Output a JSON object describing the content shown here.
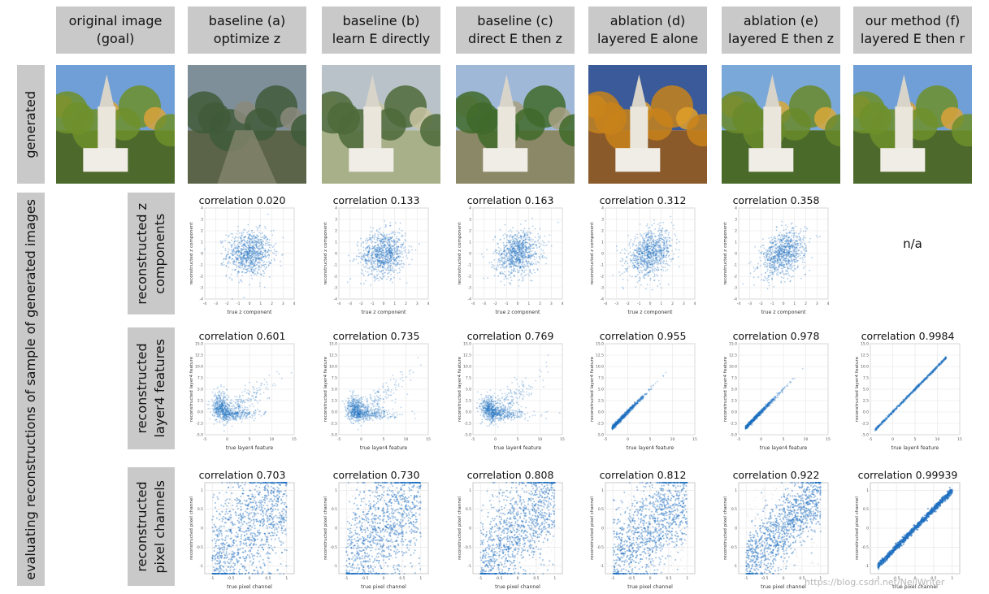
{
  "columns": [
    {
      "line1": "original image",
      "line2": "(goal)"
    },
    {
      "line1": "baseline (a)",
      "line2": "optimize z"
    },
    {
      "line1": "baseline (b)",
      "line2": "learn E directly"
    },
    {
      "line1": "baseline (c)",
      "line2": "direct E then z"
    },
    {
      "line1": "ablation (d)",
      "line2": "layered E alone"
    },
    {
      "line1": "ablation (e)",
      "line2": "layered E then z"
    },
    {
      "line1": "our method (f)",
      "line2": "layered E then r"
    }
  ],
  "side_labels": {
    "generated": "generated",
    "evaluating": "evaluating reconstructions of sample of generated images"
  },
  "row_labels": [
    {
      "line1": "reconstructed z",
      "line2": "components"
    },
    {
      "line1": "reconstructed",
      "line2": "layer4 features"
    },
    {
      "line1": "reconstructed",
      "line2": "pixel channels"
    }
  ],
  "na_text": "n/a",
  "watermark": "https://blog.csdn.net/NeilWriter",
  "images": [
    {
      "name": "original-image",
      "sky": "#6f9fd6",
      "ground": "#4d6a2c",
      "foliage": "#6f8f2a",
      "accent": "#d9a23a",
      "building": true
    },
    {
      "name": "baseline-a-image",
      "sky": "#7f8f9a",
      "ground": "#5b6448",
      "foliage": "#3f5a3a",
      "accent": "#8a8a7a",
      "building": false
    },
    {
      "name": "baseline-b-image",
      "sky": "#b8c2c8",
      "ground": "#a8b08a",
      "foliage": "#4e6a3a",
      "accent": "#c8c4a0",
      "building": true
    },
    {
      "name": "baseline-c-image",
      "sky": "#9fb8d8",
      "ground": "#8a8866",
      "foliage": "#3f6a2a",
      "accent": "#a8a080",
      "building": true
    },
    {
      "name": "ablation-d-image",
      "sky": "#3a5a9a",
      "ground": "#8a5a2a",
      "foliage": "#c8821a",
      "accent": "#e0a02a",
      "building": true
    },
    {
      "name": "ablation-e-image",
      "sky": "#7aa8d8",
      "ground": "#4a6a2a",
      "foliage": "#6a8a2a",
      "accent": "#d8a83a",
      "building": true
    },
    {
      "name": "method-f-image",
      "sky": "#6f9fd6",
      "ground": "#4d6a2c",
      "foliage": "#6f8f2a",
      "accent": "#d9a23a",
      "building": true
    }
  ],
  "plot_rows": [
    {
      "row": "z-components",
      "xlabel": "true z component",
      "ylabel": "reconstructed z component",
      "xticks": [
        -4,
        -3,
        -2,
        -1,
        0,
        1,
        2,
        3,
        4
      ],
      "yticks": [
        -4,
        -3,
        -2,
        -1,
        0,
        1,
        2,
        3,
        4
      ],
      "xlim": [
        -4,
        4
      ],
      "ylim": [
        -4,
        4
      ],
      "plots": [
        {
          "column": 1,
          "correlation_label": "correlation",
          "correlation_value": "0.020",
          "r": 0.02,
          "style": "blob"
        },
        {
          "column": 2,
          "correlation_label": "correlation",
          "correlation_value": "0.133",
          "r": 0.133,
          "style": "blob"
        },
        {
          "column": 3,
          "correlation_label": "correlation",
          "correlation_value": "0.163",
          "r": 0.163,
          "style": "blob"
        },
        {
          "column": 4,
          "correlation_label": "correlation",
          "correlation_value": "0.312",
          "r": 0.312,
          "style": "blob"
        },
        {
          "column": 5,
          "correlation_label": "correlation",
          "correlation_value": "0.358",
          "r": 0.358,
          "style": "blob"
        }
      ]
    },
    {
      "row": "layer4-features",
      "xlabel": "true layer4 feature",
      "ylabel": "reconstructed layer4 feature",
      "xticks": [
        -5,
        0,
        5,
        10,
        15
      ],
      "yticks": [
        -5.0,
        -2.5,
        0.0,
        2.5,
        5.0,
        7.5,
        10.0,
        12.5,
        15.0
      ],
      "xlim": [
        -5,
        15
      ],
      "ylim": [
        -5,
        15
      ],
      "plots": [
        {
          "column": 1,
          "correlation_label": "correlation",
          "correlation_value": "0.601",
          "r": 0.601,
          "style": "feature"
        },
        {
          "column": 2,
          "correlation_label": "correlation",
          "correlation_value": "0.735",
          "r": 0.735,
          "style": "feature"
        },
        {
          "column": 3,
          "correlation_label": "correlation",
          "correlation_value": "0.769",
          "r": 0.769,
          "style": "feature"
        },
        {
          "column": 4,
          "correlation_label": "correlation",
          "correlation_value": "0.955",
          "r": 0.955,
          "style": "feature"
        },
        {
          "column": 5,
          "correlation_label": "correlation",
          "correlation_value": "0.978",
          "r": 0.978,
          "style": "feature"
        },
        {
          "column": 6,
          "correlation_label": "correlation",
          "correlation_value": "0.9984",
          "r": 0.9984,
          "style": "feature"
        }
      ]
    },
    {
      "row": "pixel-channels",
      "xlabel": "true pixel channel",
      "ylabel": "reconstructed pixel channel",
      "xticks": [
        -1.0,
        -0.5,
        0.0,
        0.5,
        1.0
      ],
      "yticks": [
        -1.0,
        -0.5,
        0.0,
        0.5,
        1.0
      ],
      "xlim": [
        -1.2,
        1.2
      ],
      "ylim": [
        -1.2,
        1.2
      ],
      "plots": [
        {
          "column": 1,
          "correlation_label": "correlation",
          "correlation_value": "0.703",
          "r": 0.703,
          "style": "pixel"
        },
        {
          "column": 2,
          "correlation_label": "correlation",
          "correlation_value": "0.730",
          "r": 0.73,
          "style": "pixel"
        },
        {
          "column": 3,
          "correlation_label": "correlation",
          "correlation_value": "0.808",
          "r": 0.808,
          "style": "pixel"
        },
        {
          "column": 4,
          "correlation_label": "correlation",
          "correlation_value": "0.812",
          "r": 0.812,
          "style": "pixel"
        },
        {
          "column": 5,
          "correlation_label": "correlation",
          "correlation_value": "0.922",
          "r": 0.922,
          "style": "pixel"
        },
        {
          "column": 6,
          "correlation_label": "correlation",
          "correlation_value": "0.99939",
          "r": 0.99939,
          "style": "pixel"
        }
      ]
    }
  ],
  "chart_data": [
    {
      "type": "scatter",
      "title": "correlation 0.020",
      "xlabel": "true z component",
      "ylabel": "reconstructed z component",
      "xlim": [
        -4,
        4
      ],
      "ylim": [
        -4,
        4
      ],
      "correlation": 0.02
    },
    {
      "type": "scatter",
      "title": "correlation 0.133",
      "xlabel": "true z component",
      "ylabel": "reconstructed z component",
      "xlim": [
        -4,
        4
      ],
      "ylim": [
        -4,
        4
      ],
      "correlation": 0.133
    },
    {
      "type": "scatter",
      "title": "correlation 0.163",
      "xlabel": "true z component",
      "ylabel": "reconstructed z component",
      "xlim": [
        -4,
        4
      ],
      "ylim": [
        -4,
        4
      ],
      "correlation": 0.163
    },
    {
      "type": "scatter",
      "title": "correlation 0.312",
      "xlabel": "true z component",
      "ylabel": "reconstructed z component",
      "xlim": [
        -4,
        4
      ],
      "ylim": [
        -4,
        4
      ],
      "correlation": 0.312
    },
    {
      "type": "scatter",
      "title": "correlation 0.358",
      "xlabel": "true z component",
      "ylabel": "reconstructed z component",
      "xlim": [
        -4,
        4
      ],
      "ylim": [
        -4,
        4
      ],
      "correlation": 0.358
    },
    {
      "type": "scatter",
      "title": "correlation 0.601",
      "xlabel": "true layer4 feature",
      "ylabel": "reconstructed layer4 feature",
      "xlim": [
        -5,
        15
      ],
      "ylim": [
        -5,
        15
      ],
      "correlation": 0.601
    },
    {
      "type": "scatter",
      "title": "correlation 0.735",
      "xlabel": "true layer4 feature",
      "ylabel": "reconstructed layer4 feature",
      "xlim": [
        -5,
        15
      ],
      "ylim": [
        -5,
        15
      ],
      "correlation": 0.735
    },
    {
      "type": "scatter",
      "title": "correlation 0.769",
      "xlabel": "true layer4 feature",
      "ylabel": "reconstructed layer4 feature",
      "xlim": [
        -5,
        15
      ],
      "ylim": [
        -5,
        15
      ],
      "correlation": 0.769
    },
    {
      "type": "scatter",
      "title": "correlation 0.955",
      "xlabel": "true layer4 feature",
      "ylabel": "reconstructed layer4 feature",
      "xlim": [
        -5,
        15
      ],
      "ylim": [
        -5,
        15
      ],
      "correlation": 0.955
    },
    {
      "type": "scatter",
      "title": "correlation 0.978",
      "xlabel": "true layer4 feature",
      "ylabel": "reconstructed layer4 feature",
      "xlim": [
        -5,
        15
      ],
      "ylim": [
        -5,
        15
      ],
      "correlation": 0.978
    },
    {
      "type": "scatter",
      "title": "correlation 0.9984",
      "xlabel": "true layer4 feature",
      "ylabel": "reconstructed layer4 feature",
      "xlim": [
        -5,
        15
      ],
      "ylim": [
        -5,
        15
      ],
      "correlation": 0.9984
    },
    {
      "type": "scatter",
      "title": "correlation 0.703",
      "xlabel": "true pixel channel",
      "ylabel": "reconstructed pixel channel",
      "xlim": [
        -1.2,
        1.2
      ],
      "ylim": [
        -1.2,
        1.2
      ],
      "correlation": 0.703
    },
    {
      "type": "scatter",
      "title": "correlation 0.730",
      "xlabel": "true pixel channel",
      "ylabel": "reconstructed pixel channel",
      "xlim": [
        -1.2,
        1.2
      ],
      "ylim": [
        -1.2,
        1.2
      ],
      "correlation": 0.73
    },
    {
      "type": "scatter",
      "title": "correlation 0.808",
      "xlabel": "true pixel channel",
      "ylabel": "reconstructed pixel channel",
      "xlim": [
        -1.2,
        1.2
      ],
      "ylim": [
        -1.2,
        1.2
      ],
      "correlation": 0.808
    },
    {
      "type": "scatter",
      "title": "correlation 0.812",
      "xlabel": "true pixel channel",
      "ylabel": "reconstructed pixel channel",
      "xlim": [
        -1.2,
        1.2
      ],
      "ylim": [
        -1.2,
        1.2
      ],
      "correlation": 0.812
    },
    {
      "type": "scatter",
      "title": "correlation 0.922",
      "xlabel": "true pixel channel",
      "ylabel": "reconstructed pixel channel",
      "xlim": [
        -1.2,
        1.2
      ],
      "ylim": [
        -1.2,
        1.2
      ],
      "correlation": 0.922
    },
    {
      "type": "scatter",
      "title": "correlation 0.99939",
      "xlabel": "true pixel channel",
      "ylabel": "reconstructed pixel channel",
      "xlim": [
        -1.2,
        1.2
      ],
      "ylim": [
        -1.2,
        1.2
      ],
      "correlation": 0.99939
    }
  ]
}
